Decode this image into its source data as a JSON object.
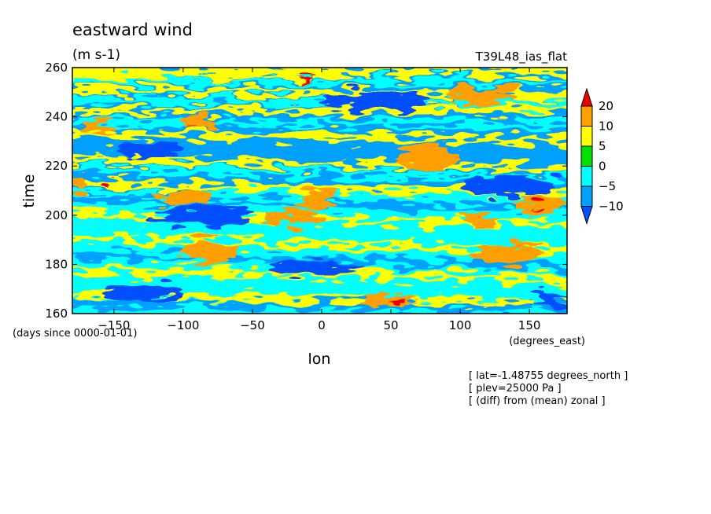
{
  "chart_data": {
    "type": "heatmap",
    "title": "eastward wind",
    "units": "(m s-1)",
    "run_label": "T39L48_ias_flat",
    "xlabel": "lon",
    "x_units": "(degrees_east)",
    "ylabel": "time",
    "y_units": "(days since 0000-01-01)",
    "xlim": [
      -180,
      177.1875
    ],
    "ylim": [
      160,
      260
    ],
    "x_ticks": [
      -150,
      -100,
      -50,
      0,
      50,
      100,
      150
    ],
    "y_ticks": [
      160,
      180,
      200,
      220,
      240,
      260
    ],
    "levels": [
      -10,
      -5,
      0,
      5,
      10,
      20
    ],
    "colorbar": {
      "labels": [
        "20",
        "10",
        "5",
        "0",
        "-5",
        "-10"
      ],
      "colors": [
        "#ef0000",
        "#ffa000",
        "#ffff00",
        "#00e000",
        "#00ffff",
        "#00a0ff",
        "#0050ff"
      ]
    },
    "annotations": [
      "[ lat=-1.48755 degrees_north ]",
      "[ plev=25000 Pa ]",
      "[ (diff) from (mean) zonal ]"
    ],
    "field_bands": {
      "upper_fill": -7,
      "lower_fill": -3,
      "bands": [
        {
          "value": 5,
          "start": [
            -180,
            259.5
          ],
          "end": [
            177.1875,
            259.5
          ]
        },
        {
          "value": 6,
          "start": [
            -180,
            257.0
          ],
          "end": [
            177.1875,
            258.5
          ]
        },
        {
          "value": -1,
          "start": [
            -180,
            254.5
          ],
          "end": [
            177.1875,
            254.0
          ]
        },
        {
          "value": 7,
          "start": [
            -180,
            251.0
          ],
          "end": [
            177.1875,
            248.5
          ]
        },
        {
          "value": -4,
          "start": [
            -180,
            247.0
          ],
          "end": [
            177.1875,
            245.5
          ]
        },
        {
          "value": 6,
          "start": [
            -180,
            242.0
          ],
          "end": [
            177.1875,
            243.0
          ]
        },
        {
          "value": -2,
          "start": [
            -180,
            238.0
          ],
          "end": [
            177.1875,
            236.5
          ]
        },
        {
          "value": 7,
          "start": [
            -180,
            233.5
          ],
          "end": [
            177.1875,
            230.0
          ]
        },
        {
          "value": -6,
          "start": [
            -180,
            228.5
          ],
          "end": [
            177.1875,
            224.0
          ]
        },
        {
          "value": 7,
          "start": [
            -180,
            223.0
          ],
          "end": [
            177.1875,
            218.5
          ]
        },
        {
          "value": -3,
          "start": [
            -180,
            219.5
          ],
          "end": [
            177.1875,
            214.5
          ]
        },
        {
          "value": 6,
          "start": [
            -180,
            213.0
          ],
          "end": [
            177.1875,
            208.5
          ]
        },
        {
          "value": -6,
          "start": [
            -180,
            207.0
          ],
          "end": [
            177.1875,
            202.5
          ]
        },
        {
          "value": 7,
          "start": [
            -180,
            200.5
          ],
          "end": [
            177.1875,
            196.0
          ]
        },
        {
          "value": -3,
          "start": [
            -180,
            196.5
          ],
          "end": [
            177.1875,
            192.0
          ]
        },
        {
          "value": 8,
          "start": [
            -180,
            190.5
          ],
          "end": [
            177.1875,
            185.5
          ]
        },
        {
          "value": -7,
          "start": [
            -180,
            184.0
          ],
          "end": [
            177.1875,
            179.0
          ]
        },
        {
          "value": 6,
          "start": [
            -180,
            178.0
          ],
          "end": [
            177.1875,
            174.0
          ]
        },
        {
          "value": -5,
          "start": [
            -180,
            172.5
          ],
          "end": [
            177.1875,
            169.0
          ]
        },
        {
          "value": 7,
          "start": [
            -180,
            167.5
          ],
          "end": [
            177.1875,
            164.5
          ]
        },
        {
          "value": -8,
          "start": [
            -180,
            164.0
          ],
          "end": [
            177.1875,
            162.0
          ]
        }
      ]
    },
    "field_patches": [
      {
        "value": 10,
        "lon": [
          -172,
          -150
        ],
        "time": [
          233,
          238
        ]
      },
      {
        "value": 10,
        "lon": [
          -100,
          -75
        ],
        "time": [
          234,
          240
        ]
      },
      {
        "value": 10,
        "lon": [
          -185,
          -165
        ],
        "time": [
          210,
          215
        ]
      },
      {
        "value": 10,
        "lon": [
          90,
          140
        ],
        "time": [
          245,
          252
        ]
      },
      {
        "value": 10,
        "lon": [
          55,
          100
        ],
        "time": [
          218,
          228
        ]
      },
      {
        "value": 10,
        "lon": [
          -20,
          10
        ],
        "time": [
          203,
          210
        ]
      },
      {
        "value": 10,
        "lon": [
          -100,
          -60
        ],
        "time": [
          180,
          190
        ]
      },
      {
        "value": 10,
        "lon": [
          110,
          160
        ],
        "time": [
          180,
          188
        ]
      },
      {
        "value": 10,
        "lon": [
          30,
          70
        ],
        "time": [
          163,
          168
        ]
      },
      {
        "value": 10,
        "lon": [
          140,
          177
        ],
        "time": [
          200,
          208
        ]
      },
      {
        "value": 10,
        "lon": [
          100,
          130
        ],
        "time": [
          196,
          200
        ]
      },
      {
        "value": 10,
        "lon": [
          -40,
          0
        ],
        "time": [
          196,
          202
        ]
      },
      {
        "value": 12,
        "lon": [
          -120,
          -80
        ],
        "time": [
          205,
          210
        ]
      },
      {
        "value": -12,
        "lon": [
          -120,
          -50
        ],
        "time": [
          196,
          204
        ]
      },
      {
        "value": -12,
        "lon": [
          -40,
          30
        ],
        "time": [
          176,
          182
        ]
      },
      {
        "value": -12,
        "lon": [
          150,
          177
        ],
        "time": [
          163,
          168
        ]
      },
      {
        "value": -12,
        "lon": [
          -160,
          -100
        ],
        "time": [
          165,
          172
        ]
      },
      {
        "value": -12,
        "lon": [
          0,
          80
        ],
        "time": [
          243,
          250
        ]
      },
      {
        "value": -12,
        "lon": [
          -150,
          -100
        ],
        "time": [
          223,
          230
        ]
      },
      {
        "value": -12,
        "lon": [
          100,
          170
        ],
        "time": [
          208,
          216
        ]
      },
      {
        "value": 22,
        "lon": [
          -14,
          -4
        ],
        "time": [
          256.5,
          258
        ]
      },
      {
        "value": 22,
        "lon": [
          52,
          62
        ],
        "time": [
          164,
          166
        ]
      },
      {
        "value": 22,
        "lon": [
          150,
          162
        ],
        "time": [
          203,
          205
        ]
      },
      {
        "value": 22,
        "lon": [
          -96,
          -90
        ],
        "time": [
          235,
          236.5
        ]
      },
      {
        "value": 22,
        "lon": [
          -160,
          -154
        ],
        "time": [
          212,
          213
        ]
      }
    ]
  }
}
